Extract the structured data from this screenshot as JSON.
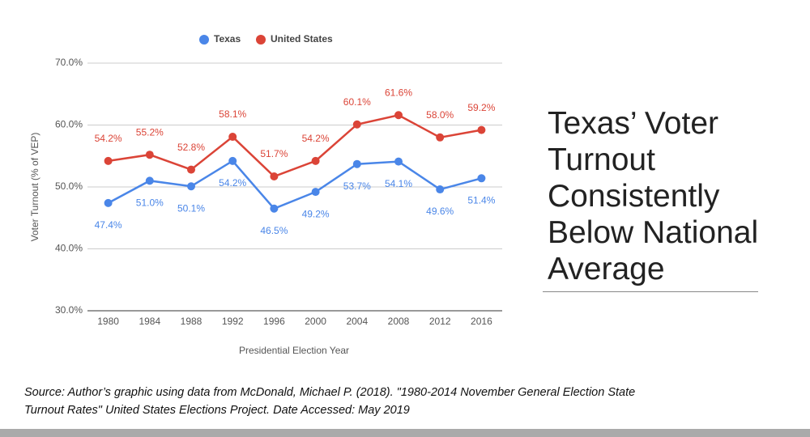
{
  "chart_data": {
    "type": "line",
    "categories": [
      "1980",
      "1984",
      "1988",
      "1992",
      "1996",
      "2000",
      "2004",
      "2008",
      "2012",
      "2016"
    ],
    "series": [
      {
        "name": "Texas",
        "color": "#4a86e8",
        "values": [
          47.4,
          51.0,
          50.1,
          54.2,
          46.5,
          49.2,
          53.7,
          54.1,
          49.6,
          51.4
        ],
        "value_labels": [
          "47.4%",
          "51.0%",
          "50.1%",
          "54.2%",
          "46.5%",
          "49.2%",
          "53.7%",
          "54.1%",
          "49.6%",
          "51.4%"
        ]
      },
      {
        "name": "United States",
        "color": "#db4437",
        "values": [
          54.2,
          55.2,
          52.8,
          58.1,
          51.7,
          54.2,
          60.1,
          61.6,
          58.0,
          59.2
        ],
        "value_labels": [
          "54.2%",
          "55.2%",
          "52.8%",
          "58.1%",
          "51.7%",
          "54.2%",
          "60.1%",
          "61.6%",
          "58.0%",
          "59.2%"
        ]
      }
    ],
    "ylim": [
      30,
      70
    ],
    "yticks": [
      {
        "value": 30,
        "label": "30.0%"
      },
      {
        "value": 40,
        "label": "40.0%"
      },
      {
        "value": 50,
        "label": "50.0%"
      },
      {
        "value": 60,
        "label": "60.0%"
      },
      {
        "value": 70,
        "label": "70.0%"
      }
    ],
    "y_label": "Voter Turnout (% of VEP)",
    "x_label": "Presidential Election Year",
    "grid": true,
    "legend": "top"
  },
  "slide": {
    "title": "Texas’ Voter Turnout Consistently Below National Average",
    "source": "Source: Author’s graphic using data from McDonald, Michael P. (2018). \"1980-2014 November General Election State Turnout Rates\" United States Elections Project. Date Accessed: May 2019"
  }
}
